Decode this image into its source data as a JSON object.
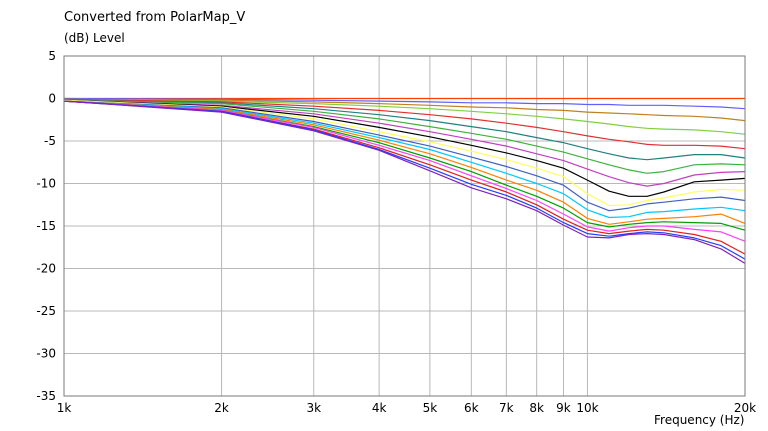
{
  "chart_data": {
    "type": "line",
    "title": "Converted from PolarMap_V",
    "ylabel": "(dB)  Level",
    "xlabel": "Frequency  (Hz)",
    "x_scale": "log",
    "xlim": [
      1000,
      20000
    ],
    "ylim": [
      -35,
      5
    ],
    "grid": true,
    "y_ticks": [
      5,
      0,
      -5,
      -10,
      -15,
      -20,
      -25,
      -30,
      -35
    ],
    "x_ticks": [
      {
        "v": 1000,
        "label": "1k"
      },
      {
        "v": 2000,
        "label": "2k"
      },
      {
        "v": 3000,
        "label": "3k"
      },
      {
        "v": 4000,
        "label": "4k"
      },
      {
        "v": 5000,
        "label": "5k"
      },
      {
        "v": 6000,
        "label": "6k"
      },
      {
        "v": 7000,
        "label": "7k"
      },
      {
        "v": 8000,
        "label": "8k"
      },
      {
        "v": 9000,
        "label": "9k"
      },
      {
        "v": 10000,
        "label": "10k"
      },
      {
        "v": 20000,
        "label": "20k"
      }
    ],
    "x": [
      1000,
      2000,
      3000,
      4000,
      5000,
      6000,
      7000,
      8000,
      9000,
      10000,
      11000,
      12000,
      13000,
      14000,
      16000,
      18000,
      20000
    ],
    "series": [
      {
        "color": "#ff4000",
        "values": [
          0,
          0,
          0,
          0,
          0,
          0,
          0,
          0,
          0,
          0,
          0,
          0,
          0,
          0,
          0,
          0,
          0
        ]
      },
      {
        "color": "#6060ff",
        "values": [
          0,
          -0.1,
          -0.2,
          -0.3,
          -0.4,
          -0.5,
          -0.5,
          -0.6,
          -0.6,
          -0.7,
          -0.7,
          -0.8,
          -0.8,
          -0.8,
          -0.9,
          -1.0,
          -1.2
        ]
      },
      {
        "color": "#c08020",
        "values": [
          -0.1,
          -0.2,
          -0.4,
          -0.6,
          -0.8,
          -1.0,
          -1.1,
          -1.3,
          -1.4,
          -1.6,
          -1.7,
          -1.8,
          -1.9,
          -2.0,
          -2.1,
          -2.3,
          -2.6
        ]
      },
      {
        "color": "#80d040",
        "values": [
          -0.1,
          -0.3,
          -0.6,
          -0.9,
          -1.2,
          -1.5,
          -1.8,
          -2.1,
          -2.4,
          -2.7,
          -3.0,
          -3.3,
          -3.5,
          -3.6,
          -3.7,
          -3.9,
          -4.2
        ]
      },
      {
        "color": "#e03030",
        "values": [
          -0.1,
          -0.4,
          -0.9,
          -1.4,
          -1.9,
          -2.4,
          -2.9,
          -3.4,
          -3.9,
          -4.4,
          -4.8,
          -5.1,
          -5.4,
          -5.5,
          -5.5,
          -5.6,
          -5.9
        ]
      },
      {
        "color": "#208080",
        "values": [
          -0.2,
          -0.5,
          -1.2,
          -1.9,
          -2.6,
          -3.3,
          -3.9,
          -4.6,
          -5.2,
          -5.9,
          -6.5,
          -7.0,
          -7.2,
          -7.0,
          -6.6,
          -6.6,
          -7.0
        ]
      },
      {
        "color": "#40b040",
        "values": [
          -0.2,
          -0.6,
          -1.5,
          -2.4,
          -3.3,
          -4.1,
          -4.8,
          -5.6,
          -6.3,
          -7.1,
          -7.8,
          -8.4,
          -8.8,
          -8.6,
          -7.8,
          -7.7,
          -7.8
        ]
      },
      {
        "color": "#c040c0",
        "values": [
          -0.2,
          -0.8,
          -1.8,
          -2.9,
          -3.9,
          -4.8,
          -5.6,
          -6.5,
          -7.3,
          -8.3,
          -9.2,
          -9.9,
          -10.3,
          -10.0,
          -9.0,
          -8.7,
          -8.6
        ]
      },
      {
        "color": "#000000",
        "values": [
          -0.2,
          -0.9,
          -2.1,
          -3.4,
          -4.5,
          -5.5,
          -6.4,
          -7.3,
          -8.2,
          -9.6,
          -10.9,
          -11.5,
          -11.5,
          -11.0,
          -9.8,
          -9.6,
          -9.4
        ]
      },
      {
        "color": "#ffff60",
        "values": [
          -0.2,
          -1.0,
          -2.4,
          -3.9,
          -5.1,
          -6.2,
          -7.2,
          -8.2,
          -9.2,
          -11.2,
          -12.6,
          -12.5,
          -12.0,
          -11.7,
          -11.0,
          -10.7,
          -10.8
        ]
      },
      {
        "color": "#4060c0",
        "values": [
          -0.3,
          -1.1,
          -2.7,
          -4.3,
          -5.6,
          -6.9,
          -8.0,
          -9.1,
          -10.2,
          -12.2,
          -13.2,
          -12.9,
          -12.4,
          -12.2,
          -11.8,
          -11.6,
          -12.0
        ]
      },
      {
        "color": "#00c8ff",
        "values": [
          -0.3,
          -1.2,
          -2.9,
          -4.6,
          -6.0,
          -7.5,
          -8.8,
          -10.0,
          -11.2,
          -13.1,
          -14.0,
          -13.9,
          -13.4,
          -13.3,
          -13.0,
          -12.8,
          -13.2
        ]
      },
      {
        "color": "#ff8000",
        "values": [
          -0.3,
          -1.3,
          -3.1,
          -4.9,
          -6.5,
          -8.1,
          -9.6,
          -10.8,
          -12.2,
          -14.1,
          -14.8,
          -14.5,
          -14.2,
          -14.1,
          -13.9,
          -13.6,
          -14.7
        ]
      },
      {
        "color": "#00a000",
        "values": [
          -0.3,
          -1.4,
          -3.3,
          -5.2,
          -7.0,
          -8.6,
          -10.2,
          -11.5,
          -12.9,
          -14.6,
          -15.1,
          -14.8,
          -14.6,
          -14.5,
          -14.6,
          -14.7,
          -15.5
        ]
      },
      {
        "color": "#ff40ff",
        "values": [
          -0.3,
          -1.4,
          -3.4,
          -5.5,
          -7.3,
          -9.1,
          -10.6,
          -12.0,
          -13.6,
          -15.1,
          -15.6,
          -15.2,
          -15.0,
          -15.0,
          -15.4,
          -15.7,
          -16.8
        ]
      },
      {
        "color": "#e02020",
        "values": [
          -0.3,
          -1.5,
          -3.6,
          -5.8,
          -7.8,
          -9.6,
          -11.0,
          -12.5,
          -14.2,
          -15.5,
          -15.9,
          -15.6,
          -15.4,
          -15.5,
          -16.0,
          -16.8,
          -18.3
        ]
      },
      {
        "color": "#2040ff",
        "values": [
          -0.3,
          -1.5,
          -3.7,
          -6.0,
          -8.2,
          -10.1,
          -11.4,
          -12.9,
          -14.6,
          -15.9,
          -16.2,
          -15.9,
          -15.7,
          -15.8,
          -16.4,
          -17.3,
          -18.9
        ]
      },
      {
        "color": "#8020c0",
        "values": [
          -0.3,
          -1.6,
          -3.8,
          -6.1,
          -8.5,
          -10.5,
          -11.8,
          -13.2,
          -14.9,
          -16.3,
          -16.4,
          -16.0,
          -15.9,
          -16.0,
          -16.6,
          -17.7,
          -19.4
        ]
      }
    ]
  }
}
